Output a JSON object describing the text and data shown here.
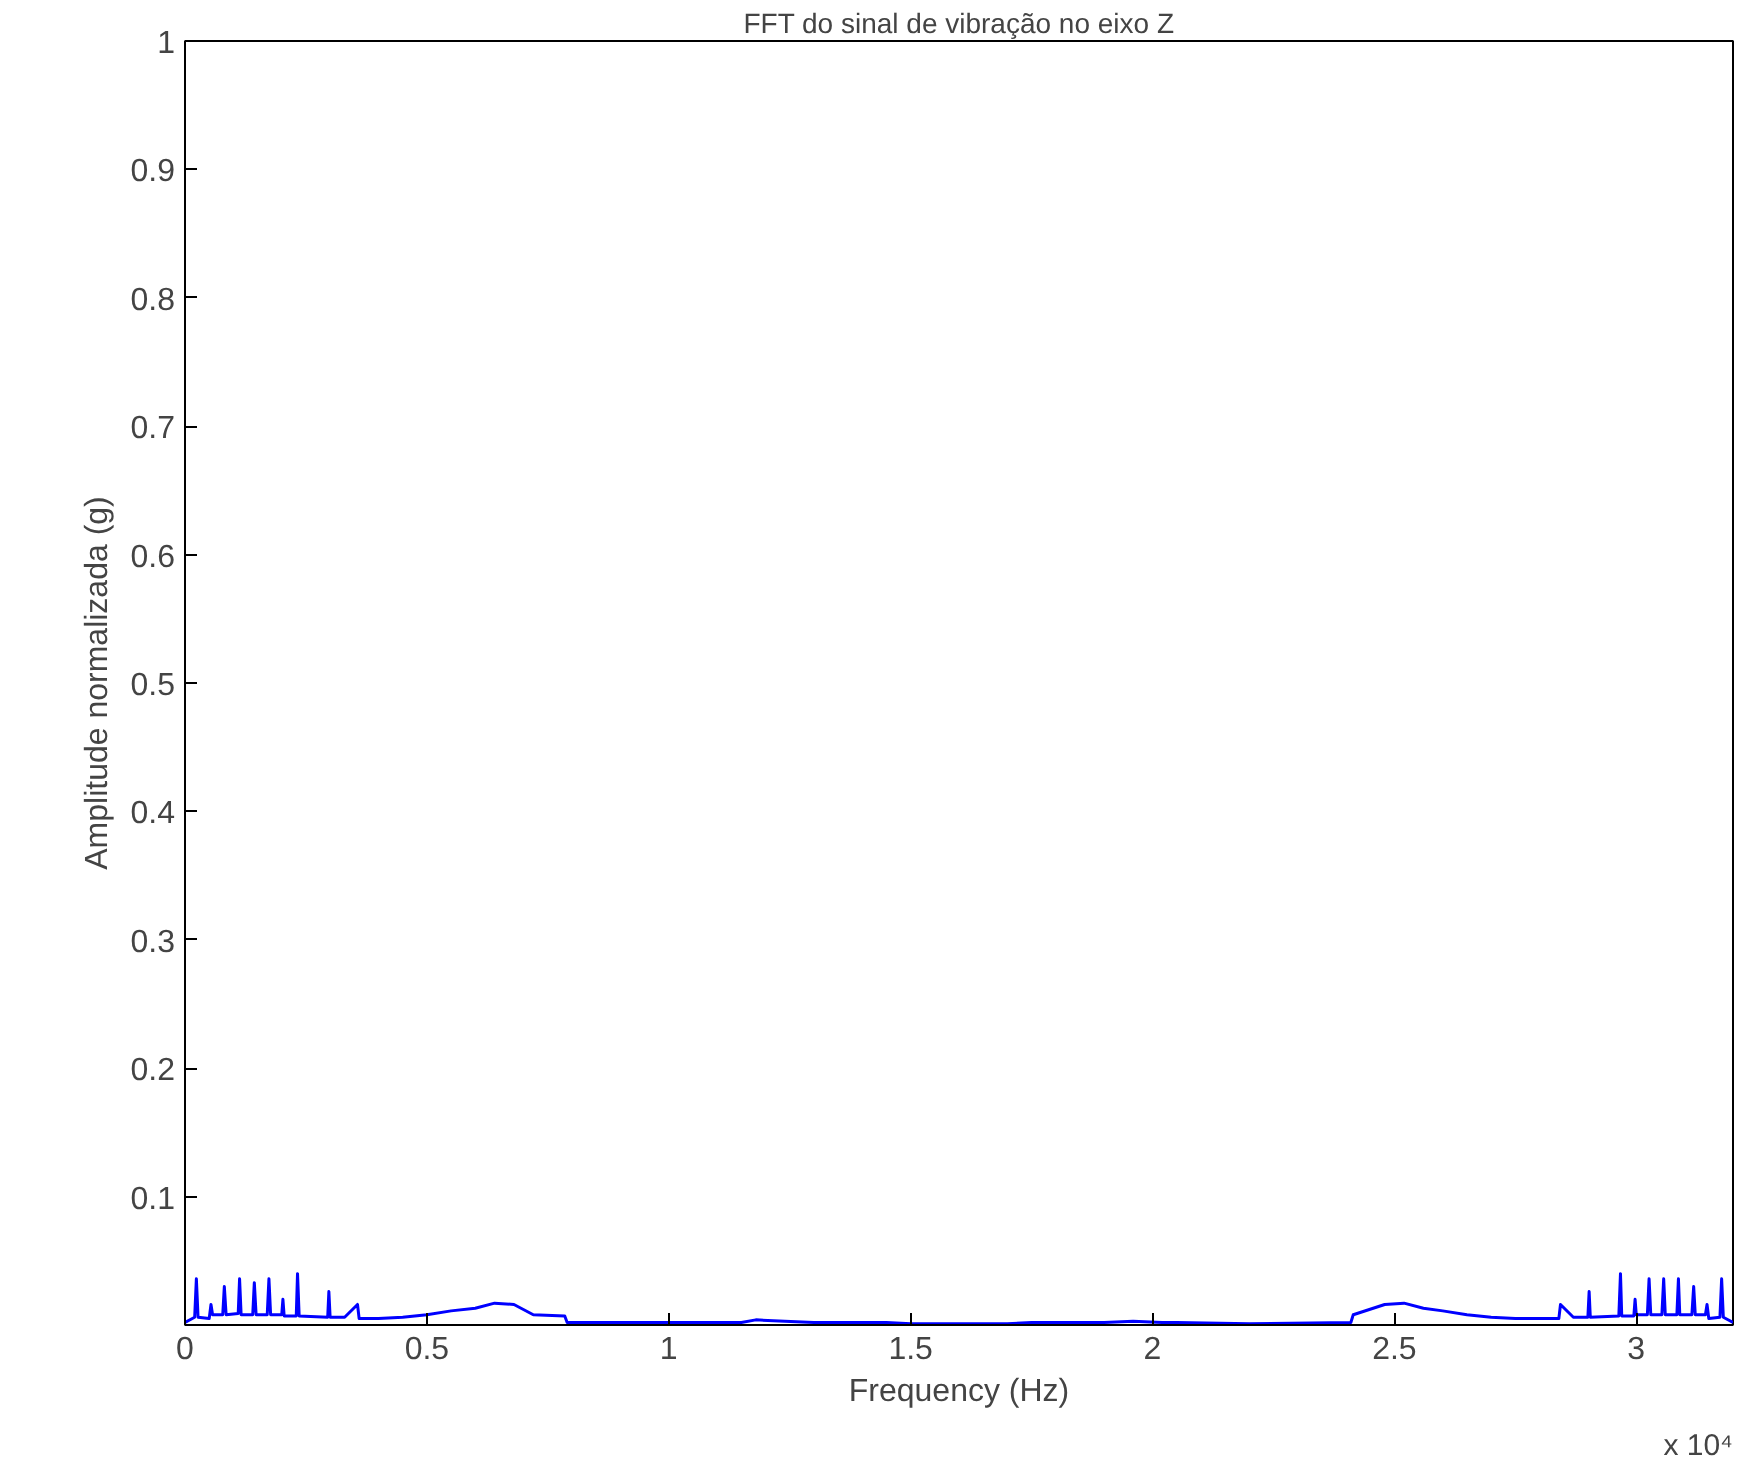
{
  "chart_data": {
    "type": "line",
    "title": "FFT do sinal de vibração no eixo Z",
    "xlabel": "Frequency (Hz)",
    "ylabel": "Amplitude normalizada (g)",
    "annotations": [
      "x 10⁴"
    ],
    "xlim": [
      0,
      3.2
    ],
    "ylim": [
      0,
      1
    ],
    "xticks": [
      0,
      0.5,
      1,
      1.5,
      2,
      2.5,
      3
    ],
    "yticks": [
      0.1,
      0.2,
      0.3,
      0.4,
      0.5,
      0.6,
      0.7,
      0.8,
      0.9,
      1
    ],
    "grid": false,
    "line_style": "solid",
    "series": [
      {
        "color": "#0000ff",
        "x": [
          0,
          0.02,
          0.0235,
          0.027,
          0.05,
          0.0537,
          0.057,
          0.078,
          0.0813,
          0.085,
          0.11,
          0.1128,
          0.116,
          0.14,
          0.1433,
          0.147,
          0.17,
          0.1735,
          0.177,
          0.2,
          0.2024,
          0.205,
          0.23,
          0.2326,
          0.236,
          0.295,
          0.2974,
          0.3,
          0.33,
          0.3566,
          0.36,
          0.4,
          0.45,
          0.5,
          0.55,
          0.6,
          0.64,
          0.68,
          0.72,
          0.785,
          0.79,
          1.0,
          1.15,
          1.18,
          1.24,
          1.3,
          1.45,
          1.5,
          1.6,
          1.7,
          1.75,
          1.9,
          1.96,
          2.02,
          2.05,
          2.2,
          2.41,
          2.415,
          2.48,
          2.52,
          2.56,
          2.6,
          2.65,
          2.7,
          2.75,
          2.8,
          2.84,
          2.8434,
          2.87,
          2.9,
          2.9026,
          2.905,
          2.964,
          2.9674,
          2.97,
          2.995,
          2.9976,
          3.0,
          3.023,
          3.0265,
          3.03,
          3.053,
          3.0567,
          3.06,
          3.084,
          3.0872,
          3.09,
          3.115,
          3.1187,
          3.122,
          3.143,
          3.1463,
          3.15,
          3.173,
          3.1765,
          3.18,
          3.2
        ],
        "values": [
          0.002,
          0.006,
          0.036,
          0.006,
          0.005,
          0.016,
          0.008,
          0.008,
          0.03,
          0.008,
          0.009,
          0.036,
          0.008,
          0.008,
          0.033,
          0.008,
          0.008,
          0.036,
          0.008,
          0.008,
          0.02,
          0.007,
          0.007,
          0.04,
          0.007,
          0.006,
          0.026,
          0.006,
          0.006,
          0.016,
          0.005,
          0.005,
          0.006,
          0.008,
          0.011,
          0.013,
          0.017,
          0.016,
          0.008,
          0.007,
          0.002,
          0.002,
          0.002,
          0.004,
          0.003,
          0.002,
          0.002,
          0.001,
          0.001,
          0.001,
          0.002,
          0.002,
          0.003,
          0.002,
          0.002,
          0.001,
          0.002,
          0.008,
          0.016,
          0.017,
          0.013,
          0.011,
          0.008,
          0.006,
          0.005,
          0.005,
          0.005,
          0.016,
          0.006,
          0.006,
          0.026,
          0.006,
          0.007,
          0.04,
          0.007,
          0.007,
          0.02,
          0.008,
          0.008,
          0.036,
          0.008,
          0.008,
          0.036,
          0.008,
          0.008,
          0.036,
          0.008,
          0.008,
          0.03,
          0.008,
          0.008,
          0.016,
          0.005,
          0.006,
          0.036,
          0.006,
          0.002
        ]
      }
    ]
  }
}
